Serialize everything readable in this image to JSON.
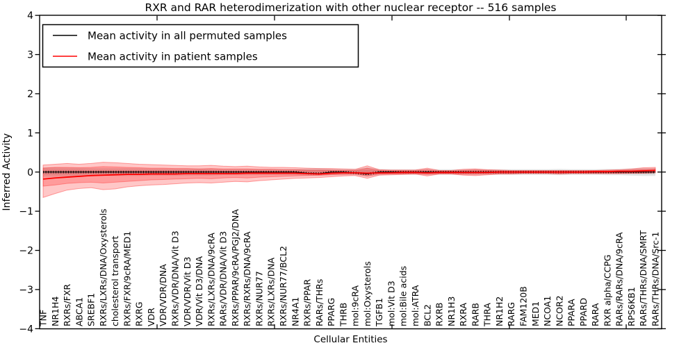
{
  "chart_data": {
    "type": "line",
    "title": "RXR and RAR heterodimerization with other nuclear receptor -- 516 samples",
    "xlabel": "Cellular Entities",
    "ylabel": "Inferred Activity",
    "ylim": [
      -4,
      4
    ],
    "yticks": [
      4,
      3,
      2,
      1,
      0,
      -1,
      -2,
      -3,
      -4
    ],
    "grid": false,
    "legend": {
      "position": "upper left",
      "entries": [
        {
          "label": "Mean activity in all permuted samples",
          "color": "#000000"
        },
        {
          "label": "Mean activity in patient samples",
          "color": "#ff0000"
        }
      ]
    },
    "colors": {
      "patient_line": "#ff0000",
      "permuted_line": "#000000",
      "patient_band_fill": "rgba(255,0,0,0.22)",
      "patient_band_edge": "rgba(255,0,0,0.35)",
      "permuted_band_fill": "rgba(0,0,0,0.10)"
    },
    "categories": [
      "TNF",
      "NR1H4",
      "RXRs/FXR",
      "ABCA1",
      "SREBF1",
      "RXRs/LXRs/DNA/Oxysterols",
      "cholesterol transport",
      "RXRs/FXR/9cRA/MED1",
      "RXRG",
      "VDR",
      "VDR/VDR/DNA",
      "RXRs/VDR/DNA/Vit D3",
      "VDR/VDR/Vit D3",
      "VDR/Vit D3/DNA",
      "RXRs/LXRs/DNA/9cRA",
      "RARs/VDR/DNA/Vit D3",
      "RXRs/PPAR/9cRA/PGJ2/DNA",
      "RXRs/RXRs/DNA/9cRA",
      "RXRs/NUR77",
      "RXRs/LXRs/DNA",
      "RXRs/NUR77/BCL2",
      "NR4A1",
      "RXRs/PPAR",
      "RARs/THRs",
      "PPARG",
      "THRB",
      "mol:9cRA",
      "mol:Oxysterols",
      "TGFB1",
      "mol:Vit D3",
      "mol:Bile acids",
      "mol:ATRA",
      "BCL2",
      "RXRB",
      "NR1H3",
      "RXRA",
      "RARB",
      "THRA",
      "NR1H2",
      "RARG",
      "FAM120B",
      "MED1",
      "NCOA1",
      "NCOR2",
      "PPARA",
      "PPARD",
      "RARA",
      "RXR alpha/CCPG",
      "RARs/RARs/DNA/9cRA",
      "RPS6KB1",
      "RARs/THRs/DNA/SMRT",
      "RARs/THRs/DNA/Src-1"
    ],
    "series": [
      {
        "name": "Mean activity in all permuted samples",
        "color": "#000000",
        "values": [
          0,
          0,
          0,
          0,
          0,
          0,
          0,
          0,
          0,
          0,
          0,
          0,
          0,
          0,
          0,
          0,
          0,
          0,
          0,
          0,
          0,
          0,
          -0.03,
          -0.04,
          0,
          0,
          -0.02,
          -0.05,
          0,
          0,
          0,
          0,
          0,
          0,
          0,
          0,
          0,
          0,
          0,
          0,
          0,
          0,
          0,
          0,
          0,
          0,
          0,
          0,
          0,
          0,
          0,
          0
        ]
      },
      {
        "name": "Mean activity in patient samples",
        "color": "#ff0000",
        "values": [
          -0.18,
          -0.15,
          -0.13,
          -0.11,
          -0.09,
          -0.08,
          -0.07,
          -0.06,
          -0.06,
          -0.05,
          -0.05,
          -0.05,
          -0.04,
          -0.04,
          -0.04,
          -0.04,
          -0.04,
          -0.03,
          -0.03,
          -0.03,
          -0.03,
          -0.03,
          -0.04,
          -0.05,
          -0.03,
          -0.02,
          -0.02,
          -0.03,
          -0.02,
          -0.02,
          -0.01,
          -0.01,
          -0.02,
          -0.01,
          -0.01,
          -0.01,
          -0.01,
          -0.01,
          0,
          0,
          0,
          0,
          0,
          0,
          0,
          0,
          0.01,
          0.01,
          0.02,
          0.02,
          0.03,
          0.04
        ]
      }
    ],
    "bands": [
      {
        "name": "permuted-outer-band",
        "fill": "rgba(0,0,0,0.10)",
        "high": [
          0.12,
          0.12,
          0.11,
          0.11,
          0.1,
          0.1,
          0.1,
          0.1,
          0.1,
          0.09,
          0.09,
          0.09,
          0.09,
          0.09,
          0.09,
          0.08,
          0.08,
          0.08,
          0.08,
          0.08,
          0.08,
          0.08,
          0.09,
          0.1,
          0.08,
          0.08,
          0.08,
          0.12,
          0.08,
          0.07,
          0.07,
          0.07,
          0.08,
          0.07,
          0.07,
          0.07,
          0.08,
          0.07,
          0.07,
          0.07,
          0.07,
          0.07,
          0.07,
          0.08,
          0.07,
          0.07,
          0.07,
          0.08,
          0.08,
          0.09,
          0.1,
          0.1
        ],
        "low": [
          -0.12,
          -0.12,
          -0.11,
          -0.11,
          -0.1,
          -0.1,
          -0.1,
          -0.1,
          -0.1,
          -0.09,
          -0.09,
          -0.09,
          -0.09,
          -0.09,
          -0.09,
          -0.08,
          -0.08,
          -0.08,
          -0.08,
          -0.08,
          -0.08,
          -0.08,
          -0.09,
          -0.1,
          -0.08,
          -0.08,
          -0.08,
          -0.12,
          -0.08,
          -0.07,
          -0.07,
          -0.07,
          -0.08,
          -0.07,
          -0.07,
          -0.07,
          -0.08,
          -0.07,
          -0.07,
          -0.07,
          -0.07,
          -0.07,
          -0.07,
          -0.08,
          -0.07,
          -0.07,
          -0.07,
          -0.08,
          -0.08,
          -0.09,
          -0.1,
          -0.1
        ]
      },
      {
        "name": "permuted-inner-band",
        "fill": "rgba(0,0,0,0.10)",
        "high": [
          0.06,
          0.06,
          0.06,
          0.06,
          0.05,
          0.05,
          0.05,
          0.05,
          0.05,
          0.05,
          0.05,
          0.05,
          0.05,
          0.05,
          0.05,
          0.04,
          0.04,
          0.04,
          0.04,
          0.04,
          0.04,
          0.04,
          0.05,
          0.05,
          0.04,
          0.04,
          0.04,
          0.06,
          0.04,
          0.04,
          0.04,
          0.04,
          0.04,
          0.04,
          0.04,
          0.04,
          0.04,
          0.04,
          0.04,
          0.04,
          0.04,
          0.04,
          0.04,
          0.04,
          0.04,
          0.04,
          0.04,
          0.04,
          0.04,
          0.05,
          0.05,
          0.05
        ],
        "low": [
          -0.06,
          -0.06,
          -0.06,
          -0.06,
          -0.05,
          -0.05,
          -0.05,
          -0.05,
          -0.05,
          -0.05,
          -0.05,
          -0.05,
          -0.05,
          -0.05,
          -0.05,
          -0.04,
          -0.04,
          -0.04,
          -0.04,
          -0.04,
          -0.04,
          -0.04,
          -0.05,
          -0.05,
          -0.04,
          -0.04,
          -0.04,
          -0.06,
          -0.04,
          -0.04,
          -0.04,
          -0.04,
          -0.04,
          -0.04,
          -0.04,
          -0.04,
          -0.04,
          -0.04,
          -0.04,
          -0.04,
          -0.04,
          -0.04,
          -0.04,
          -0.04,
          -0.04,
          -0.04,
          -0.04,
          -0.04,
          -0.04,
          -0.05,
          -0.05,
          -0.05
        ]
      },
      {
        "name": "patient-outer-band",
        "fill": "rgba(255,0,0,0.22)",
        "edge": "rgba(255,0,0,0.35)",
        "high": [
          0.18,
          0.2,
          0.22,
          0.2,
          0.22,
          0.25,
          0.24,
          0.22,
          0.2,
          0.19,
          0.18,
          0.17,
          0.16,
          0.16,
          0.17,
          0.15,
          0.14,
          0.15,
          0.13,
          0.12,
          0.12,
          0.11,
          0.1,
          0.09,
          0.09,
          0.08,
          0.07,
          0.16,
          0.06,
          0.05,
          0.05,
          0.05,
          0.1,
          0.04,
          0.04,
          0.07,
          0.08,
          0.06,
          0.05,
          0.04,
          0.04,
          0.04,
          0.04,
          0.04,
          0.04,
          0.04,
          0.04,
          0.05,
          0.06,
          0.08,
          0.11,
          0.12
        ],
        "low": [
          -0.65,
          -0.55,
          -0.46,
          -0.42,
          -0.4,
          -0.45,
          -0.43,
          -0.38,
          -0.35,
          -0.33,
          -0.32,
          -0.3,
          -0.28,
          -0.27,
          -0.28,
          -0.26,
          -0.24,
          -0.25,
          -0.22,
          -0.2,
          -0.18,
          -0.16,
          -0.15,
          -0.14,
          -0.12,
          -0.1,
          -0.09,
          -0.16,
          -0.08,
          -0.07,
          -0.06,
          -0.05,
          -0.1,
          -0.05,
          -0.05,
          -0.08,
          -0.09,
          -0.07,
          -0.05,
          -0.05,
          -0.04,
          -0.04,
          -0.04,
          -0.05,
          -0.04,
          -0.04,
          -0.04,
          -0.04,
          -0.04,
          -0.03,
          -0.03,
          -0.02
        ]
      },
      {
        "name": "patient-inner-band",
        "fill": "rgba(255,0,0,0.22)",
        "edge": "rgba(255,0,0,0.30)",
        "high": [
          0.1,
          0.12,
          0.12,
          0.11,
          0.12,
          0.14,
          0.13,
          0.12,
          0.11,
          0.1,
          0.1,
          0.09,
          0.09,
          0.08,
          0.09,
          0.08,
          0.08,
          0.08,
          0.07,
          0.07,
          0.06,
          0.06,
          0.05,
          0.05,
          0.05,
          0.04,
          0.04,
          0.1,
          0.04,
          0.03,
          0.03,
          0.03,
          0.06,
          0.02,
          0.02,
          0.04,
          0.05,
          0.04,
          0.03,
          0.02,
          0.02,
          0.02,
          0.02,
          0.02,
          0.02,
          0.02,
          0.03,
          0.03,
          0.04,
          0.05,
          0.07,
          0.08
        ],
        "low": [
          -0.36,
          -0.33,
          -0.29,
          -0.27,
          -0.26,
          -0.28,
          -0.26,
          -0.24,
          -0.22,
          -0.2,
          -0.19,
          -0.18,
          -0.17,
          -0.16,
          -0.17,
          -0.15,
          -0.14,
          -0.15,
          -0.13,
          -0.12,
          -0.11,
          -0.1,
          -0.09,
          -0.08,
          -0.07,
          -0.06,
          -0.05,
          -0.1,
          -0.05,
          -0.04,
          -0.04,
          -0.03,
          -0.06,
          -0.03,
          -0.03,
          -0.05,
          -0.05,
          -0.04,
          -0.03,
          -0.03,
          -0.02,
          -0.02,
          -0.02,
          -0.03,
          -0.02,
          -0.02,
          -0.02,
          -0.02,
          -0.02,
          -0.02,
          -0.01,
          0.0
        ]
      }
    ]
  }
}
